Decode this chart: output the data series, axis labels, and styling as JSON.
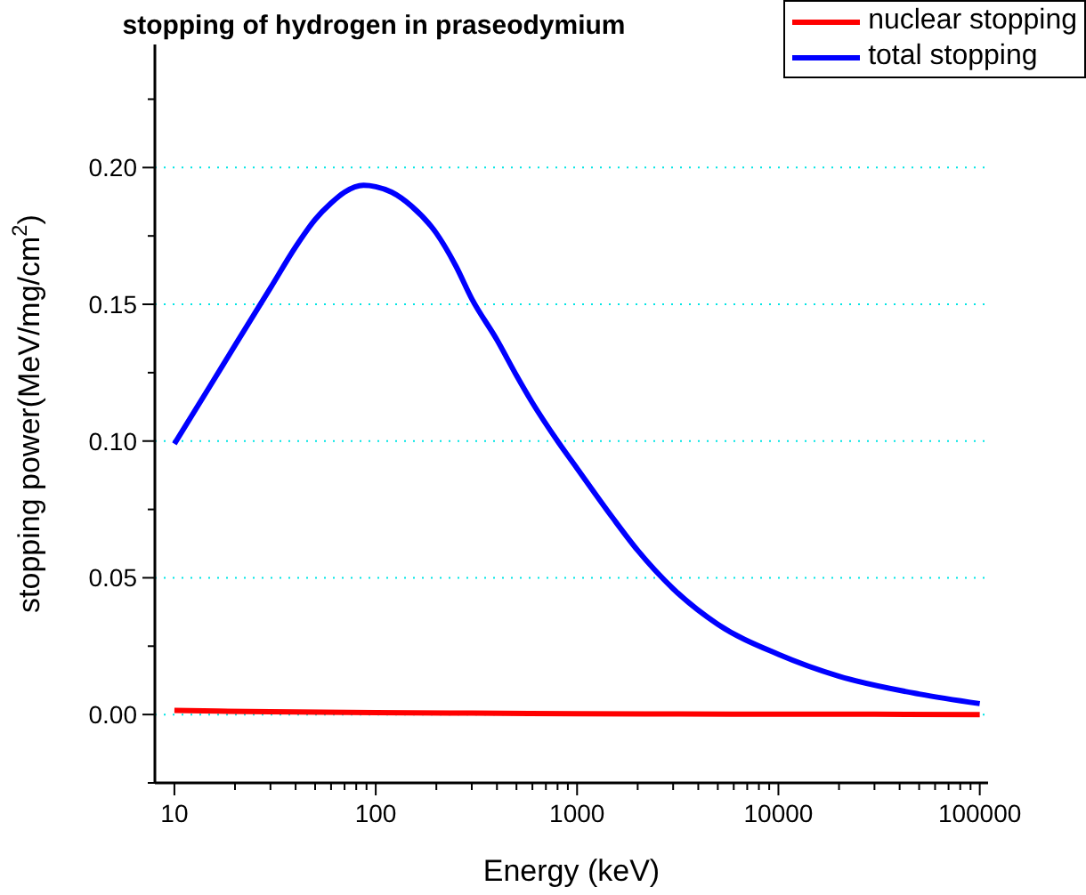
{
  "chart_data": {
    "type": "line",
    "title": "stopping of hydrogen in praseodymium",
    "xlabel": "Energy (keV)",
    "ylabel": "stopping power(MeV/mg/cm$^{2}$)",
    "log": "x",
    "grid": "y",
    "legend": "top right",
    "line_style": "solid",
    "marker": "none",
    "xlim": [
      8,
      110000
    ],
    "ylim": [
      -0.025,
      0.245
    ],
    "xticks": [
      10,
      {
        "value": 20,
        "label": null
      },
      {
        "value": 30,
        "label": null
      },
      {
        "value": 40,
        "label": null
      },
      {
        "value": 50,
        "label": null
      },
      {
        "value": 60,
        "label": null
      },
      {
        "value": 70,
        "label": null
      },
      {
        "value": 80,
        "label": null
      },
      {
        "value": 90,
        "label": null
      },
      100,
      {
        "value": 200,
        "label": null
      },
      {
        "value": 300,
        "label": null
      },
      {
        "value": 400,
        "label": null
      },
      {
        "value": 500,
        "label": null
      },
      {
        "value": 600,
        "label": null
      },
      {
        "value": 700,
        "label": null
      },
      {
        "value": 800,
        "label": null
      },
      {
        "value": 900,
        "label": null
      },
      1000,
      {
        "value": 2000,
        "label": null
      },
      {
        "value": 3000,
        "label": null
      },
      {
        "value": 4000,
        "label": null
      },
      {
        "value": 5000,
        "label": null
      },
      {
        "value": 6000,
        "label": null
      },
      {
        "value": 7000,
        "label": null
      },
      {
        "value": 8000,
        "label": null
      },
      {
        "value": 9000,
        "label": null
      },
      10000,
      {
        "value": 20000,
        "label": null
      },
      {
        "value": 30000,
        "label": null
      },
      {
        "value": 40000,
        "label": null
      },
      {
        "value": 50000,
        "label": null
      },
      {
        "value": 60000,
        "label": null
      },
      {
        "value": 70000,
        "label": null
      },
      {
        "value": 80000,
        "label": null
      },
      {
        "value": 90000,
        "label": null
      },
      100000
    ],
    "yticks": [
      {
        "value": -0.025,
        "label": null
      },
      {
        "value": 0,
        "label": "0.00"
      },
      {
        "value": 0.025,
        "label": null
      },
      {
        "value": 0.05,
        "label": "0.05"
      },
      {
        "value": 0.075,
        "label": null
      },
      {
        "value": 0.1,
        "label": "0.10"
      },
      {
        "value": 0.125,
        "label": null
      },
      {
        "value": 0.15,
        "label": "0.15"
      },
      {
        "value": 0.175,
        "label": null
      },
      {
        "value": 0.2,
        "label": "0.20"
      },
      {
        "value": 0.225,
        "label": null
      }
    ],
    "series": [
      {
        "name": "nuclear stopping",
        "color": "#ff0000",
        "x": [
          10,
          30,
          100,
          300,
          1000,
          3000,
          10000,
          30000,
          100000
        ],
        "values": [
          0.0015,
          0.001,
          0.0007,
          0.0005,
          0.0003,
          0.0002,
          0.0001,
          0.0001,
          0
        ]
      },
      {
        "name": "total stopping",
        "color": "#0000ff",
        "x": [
          10,
          15,
          20,
          30,
          40,
          50,
          60,
          70,
          87,
          100,
          120,
          150,
          200,
          250,
          300,
          400,
          500,
          600,
          800,
          1000,
          1500,
          2000,
          3000,
          5000,
          10000,
          20000,
          50000,
          100000
        ],
        "values": [
          0.099,
          0.12,
          0.135,
          0.156,
          0.171,
          0.181,
          0.187,
          0.191,
          0.1935,
          0.193,
          0.191,
          0.186,
          0.176,
          0.164,
          0.152,
          0.137,
          0.124,
          0.114,
          0.1,
          0.09,
          0.072,
          0.06,
          0.046,
          0.033,
          0.022,
          0.014,
          0.0075,
          0.004
        ]
      }
    ]
  }
}
